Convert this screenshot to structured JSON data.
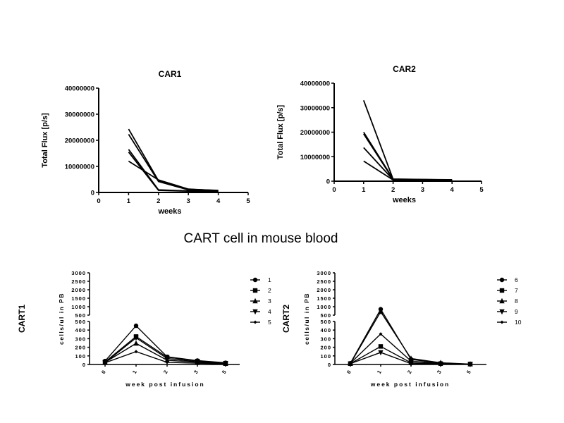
{
  "main_title": "CART cell in mouse blood",
  "chart_data": [
    {
      "id": "car1",
      "type": "line",
      "title": "CAR1",
      "xlabel": "weeks",
      "ylabel": "Total Flux [p/s]",
      "xlim": [
        0,
        5
      ],
      "ylim": [
        0,
        40000000
      ],
      "xticks": [
        "0",
        "1",
        "2",
        "3",
        "4",
        "5"
      ],
      "yticks": [
        "0",
        "10000000",
        "20000000",
        "30000000",
        "40000000"
      ],
      "x": [
        1,
        2,
        3,
        4
      ],
      "series": [
        {
          "values": [
            24300000,
            4500000,
            1200000,
            800000
          ]
        },
        {
          "values": [
            22300000,
            4200000,
            1000000,
            500000
          ]
        },
        {
          "values": [
            16500000,
            1000000,
            600000,
            500000
          ]
        },
        {
          "values": [
            15500000,
            800000,
            500000,
            300000
          ]
        },
        {
          "values": [
            12000000,
            4800000,
            1300000,
            700000
          ]
        }
      ]
    },
    {
      "id": "car2",
      "type": "line",
      "title": "CAR2",
      "xlabel": "weeks",
      "ylabel": "Total Flux [p/s]",
      "xlim": [
        0,
        5
      ],
      "ylim": [
        0,
        40000000
      ],
      "xticks": [
        "0",
        "1",
        "2",
        "3",
        "4",
        "5"
      ],
      "yticks": [
        "0",
        "10000000",
        "20000000",
        "30000000",
        "40000000"
      ],
      "x": [
        1,
        2,
        4
      ],
      "series": [
        {
          "values": [
            33000000,
            800000,
            600000
          ]
        },
        {
          "values": [
            20000000,
            900000,
            500000
          ]
        },
        {
          "values": [
            19300000,
            700000,
            400000
          ]
        },
        {
          "values": [
            13700000,
            600000,
            300000
          ]
        },
        {
          "values": [
            8200000,
            500000,
            200000
          ]
        }
      ]
    },
    {
      "id": "cart1",
      "type": "line",
      "title": "CART1",
      "xlabel": "week post infusion",
      "ylabel": "cells/ul in PB",
      "categories": [
        "0",
        "1",
        "2",
        "3",
        "5"
      ],
      "ybreak": 500,
      "ylim": [
        0,
        3000
      ],
      "yticks_low": [
        "0",
        "100",
        "200",
        "300",
        "400",
        "500"
      ],
      "yticks_high": [
        "500",
        "1000",
        "1500",
        "2000",
        "2500",
        "3000"
      ],
      "series": [
        {
          "name": "1",
          "marker": "circle",
          "values": [
            40,
            450,
            90,
            45,
            20
          ]
        },
        {
          "name": "2",
          "marker": "square",
          "values": [
            30,
            325,
            85,
            40,
            15
          ]
        },
        {
          "name": "3",
          "marker": "triangle",
          "values": [
            25,
            245,
            50,
            25,
            10
          ]
        },
        {
          "name": "4",
          "marker": "triangle-down",
          "values": [
            20,
            310,
            70,
            30,
            15
          ]
        },
        {
          "name": "5",
          "marker": "diamond",
          "values": [
            20,
            150,
            25,
            15,
            5
          ]
        }
      ]
    },
    {
      "id": "cart2",
      "type": "line",
      "title": "CART2",
      "xlabel": "week post infusion",
      "ylabel": "cells/ul in PB",
      "categories": [
        "0",
        "1",
        "2",
        "3",
        "5"
      ],
      "ybreak": 500,
      "ylim": [
        0,
        3000
      ],
      "yticks_low": [
        "0",
        "100",
        "200",
        "300",
        "400",
        "500"
      ],
      "yticks_high": [
        "500",
        "1000",
        "1500",
        "2000",
        "2500",
        "3000"
      ],
      "series": [
        {
          "name": "6",
          "marker": "circle",
          "values": [
            15,
            850,
            60,
            15,
            5
          ]
        },
        {
          "name": "7",
          "marker": "square",
          "values": [
            10,
            210,
            20,
            10,
            5
          ]
        },
        {
          "name": "8",
          "marker": "triangle",
          "values": [
            10,
            700,
            70,
            20,
            5
          ]
        },
        {
          "name": "9",
          "marker": "triangle-down",
          "values": [
            10,
            140,
            10,
            5,
            3
          ]
        },
        {
          "name": "10",
          "marker": "diamond",
          "values": [
            15,
            355,
            40,
            10,
            5
          ]
        }
      ]
    }
  ]
}
